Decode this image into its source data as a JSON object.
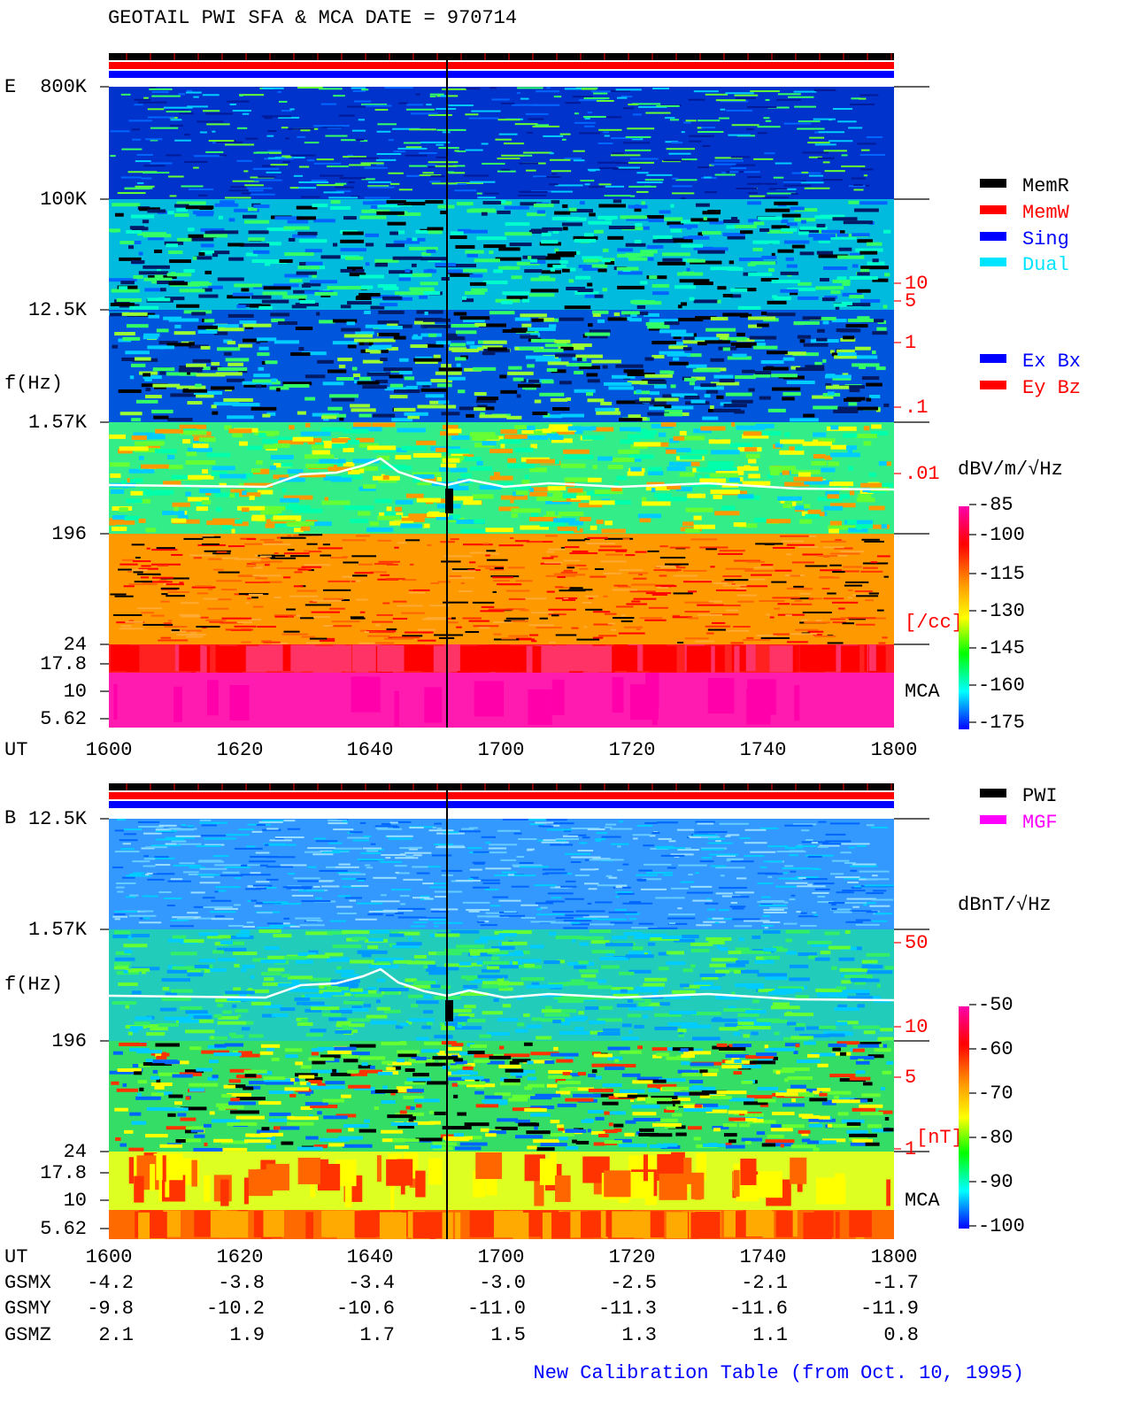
{
  "header": {
    "title": "GEOTAIL   PWI SFA & MCA   DATE = 970714"
  },
  "panel_e": {
    "label": "E",
    "y_axis_label": "f(Hz)",
    "freq_ticks": [
      "800K",
      "100K",
      "12.5K",
      "1.57K",
      "196",
      "24",
      "17.8",
      "10",
      "5.62"
    ],
    "time_label": "UT",
    "time_ticks": [
      1600,
      1620,
      1640,
      1700,
      1720,
      1740,
      1800
    ],
    "density_ticks": [
      "10",
      "5",
      "1",
      ".1",
      ".01"
    ],
    "density_unit": "[/cc]",
    "mca_label": "MCA",
    "legend_mode": [
      {
        "label": "MemR",
        "color": "#000000"
      },
      {
        "label": "MemW",
        "color": "#ff0000"
      },
      {
        "label": "Sing",
        "color": "#0000ff"
      },
      {
        "label": "Dual",
        "color": "#00e5ff"
      }
    ],
    "legend_axis": [
      {
        "label": "Ex Bx",
        "color": "#0000ff"
      },
      {
        "label": "Ey Bz",
        "color": "#ff0000"
      }
    ],
    "colorbar_unit": "dBV/m/√Hz",
    "colorbar_ticks": [
      -85,
      -100,
      -115,
      -130,
      -145,
      -160,
      -175
    ]
  },
  "panel_b": {
    "label": "B",
    "y_axis_label": "f(Hz)",
    "freq_ticks": [
      "12.5K",
      "1.57K",
      "196",
      "24",
      "17.8",
      "10",
      "5.62"
    ],
    "density_ticks": [
      "50",
      "10",
      "5",
      "1"
    ],
    "density_unit": "[nT]",
    "mca_label": "MCA",
    "legend": [
      {
        "label": "PWI",
        "color": "#000000"
      },
      {
        "label": "MGF",
        "color": "#ff00ff"
      }
    ],
    "colorbar_unit": "dBnT/√Hz",
    "colorbar_ticks": [
      -50,
      -60,
      -70,
      -80,
      -90,
      -100
    ]
  },
  "orbit_table": {
    "rows": [
      {
        "label": "UT",
        "values": [
          "1600",
          "1620",
          "1640",
          "1700",
          "1720",
          "1740",
          "1800"
        ]
      },
      {
        "label": "GSMX",
        "values": [
          "-4.2",
          "-3.8",
          "-3.4",
          "-3.0",
          "-2.5",
          "-2.1",
          "-1.7"
        ]
      },
      {
        "label": "GSMY",
        "values": [
          "-9.8",
          "-10.2",
          "-10.6",
          "-11.0",
          "-11.3",
          "-11.6",
          "-11.9"
        ]
      },
      {
        "label": "GSMZ",
        "values": [
          "2.1",
          "1.9",
          "1.7",
          "1.5",
          "1.3",
          "1.1",
          "0.8"
        ]
      }
    ]
  },
  "footer": {
    "note": "New Calibration Table (from Oct. 10, 1995)"
  }
}
